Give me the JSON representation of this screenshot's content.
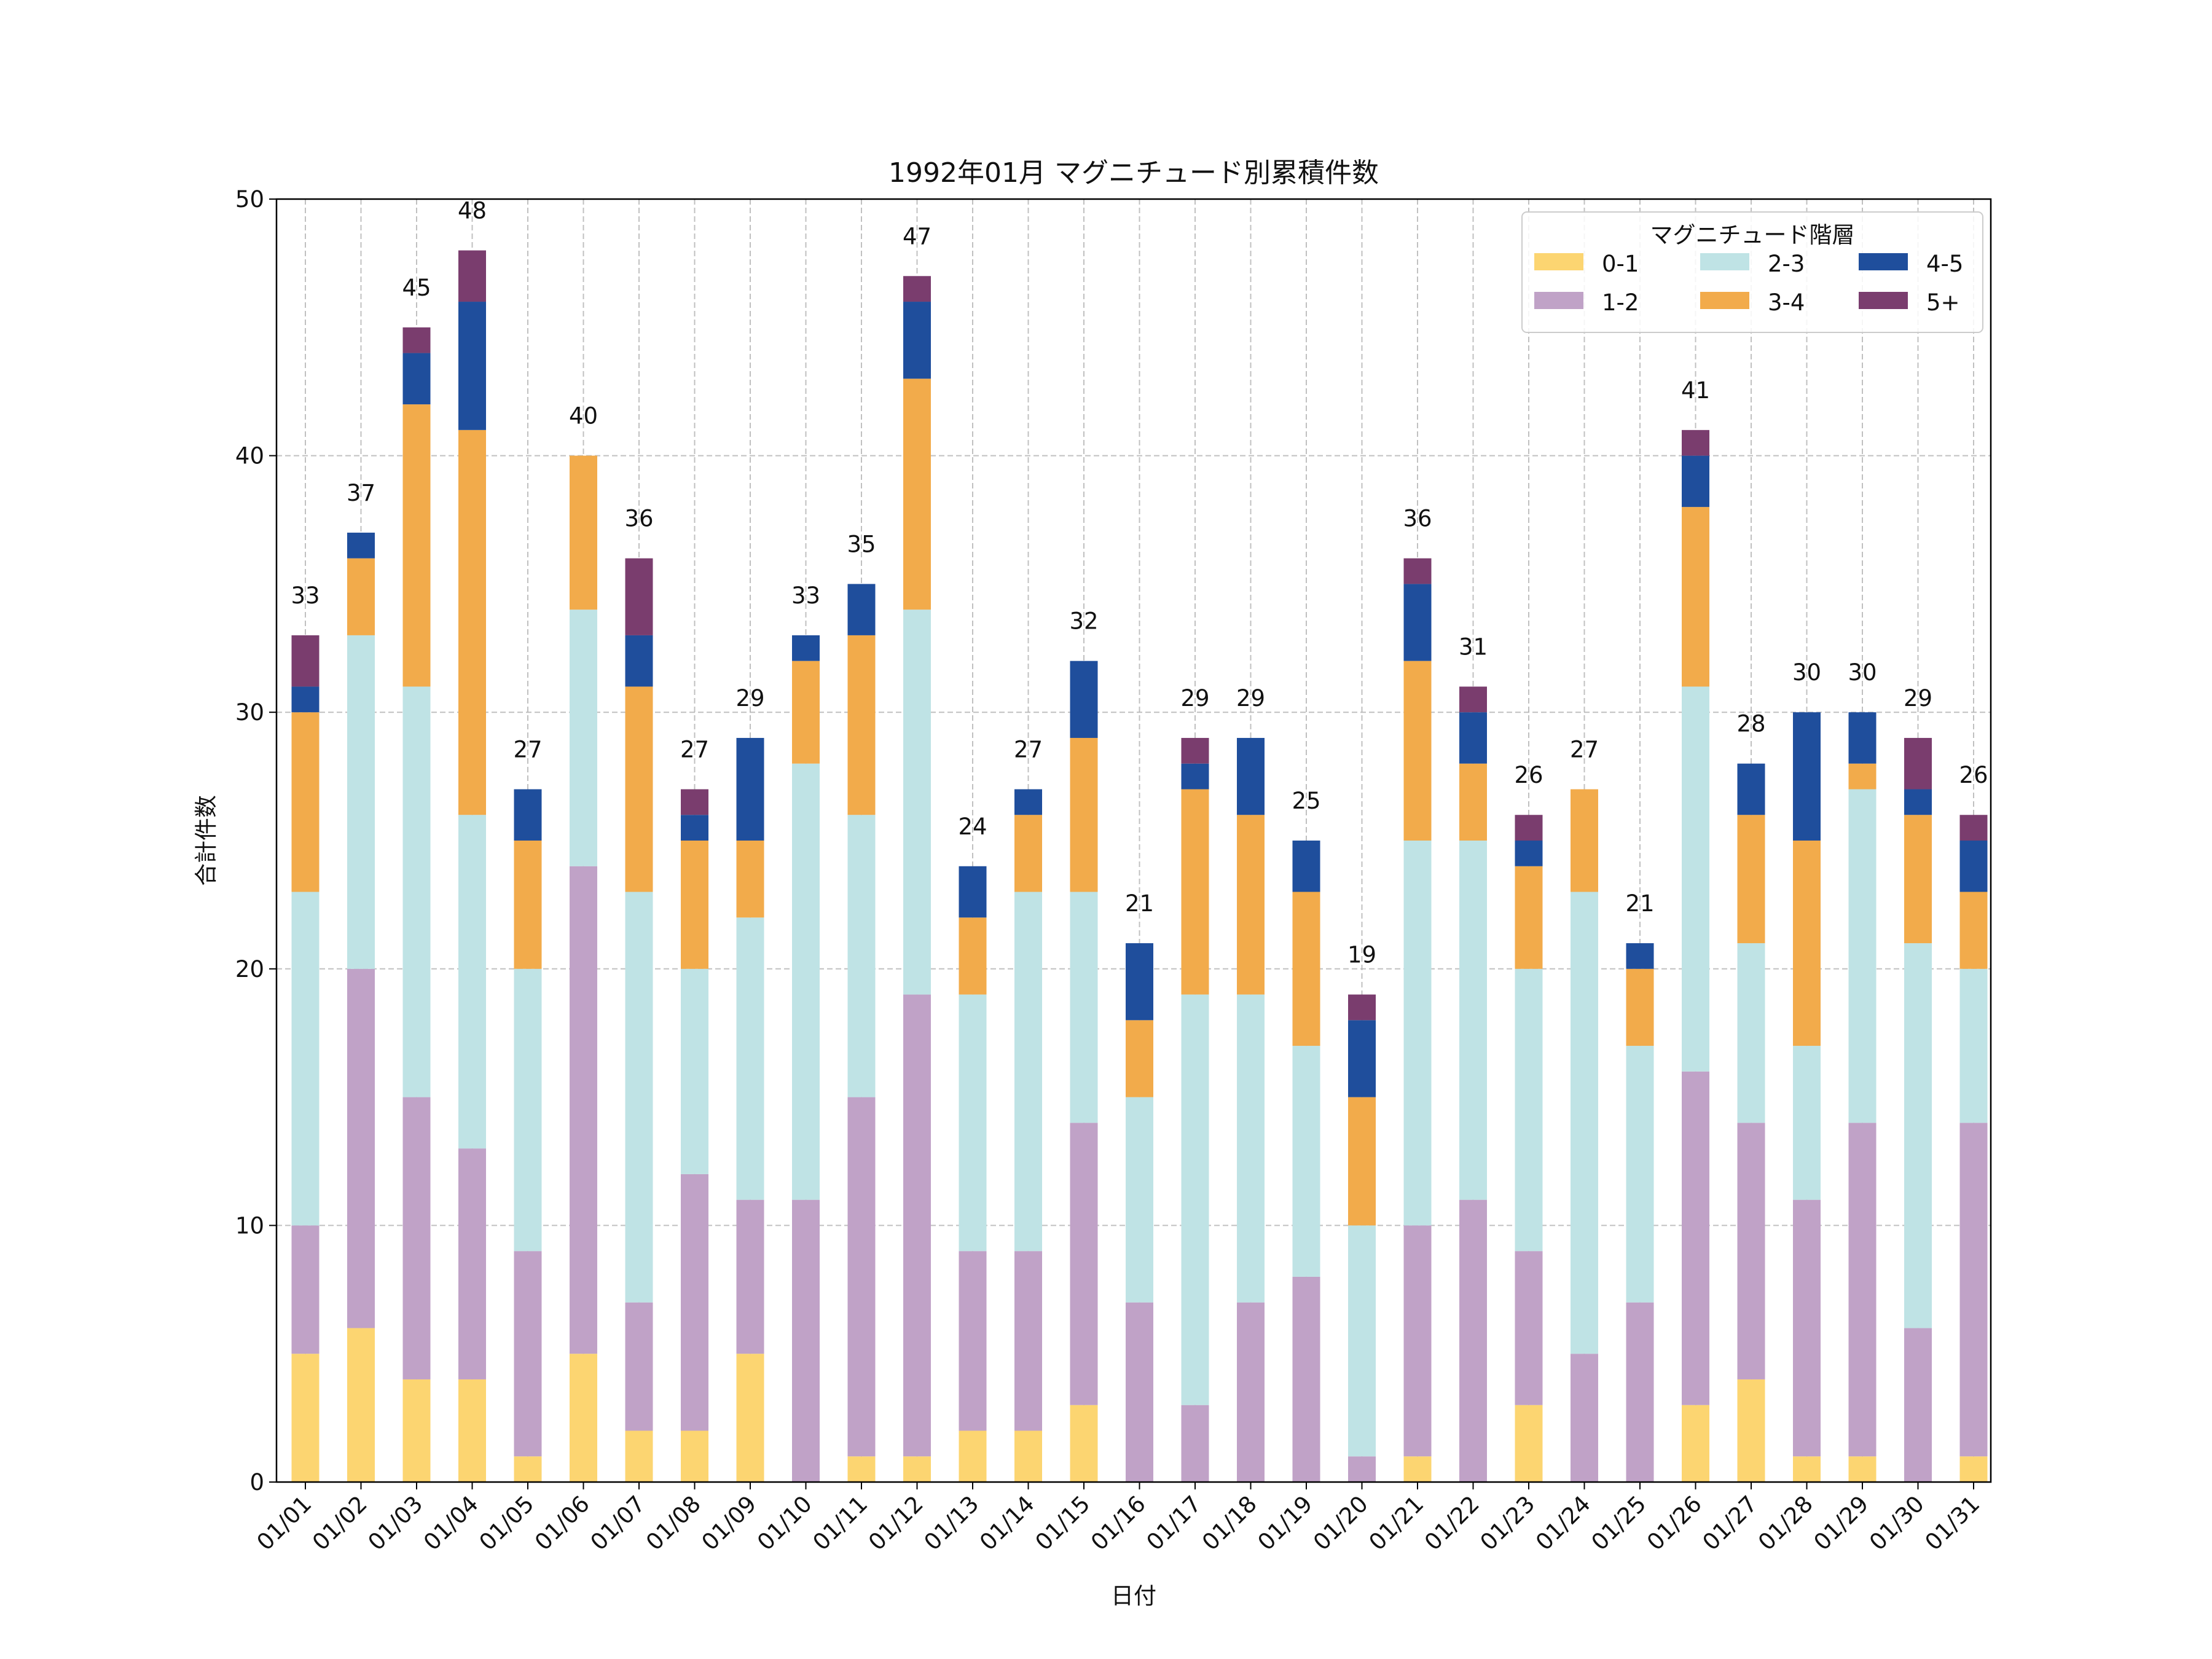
{
  "chart_data": {
    "type": "bar",
    "stacked": true,
    "title": "1992年01月 マグニチュード別累積件数",
    "xlabel": "日付",
    "ylabel": "合計件数",
    "ylim": [
      0,
      50
    ],
    "yticks": [
      0,
      10,
      20,
      30,
      40,
      50
    ],
    "grid": true,
    "legend_title": "マグニチュード階層",
    "legend_position": "top-right",
    "categories": [
      "01/01",
      "01/02",
      "01/03",
      "01/04",
      "01/05",
      "01/06",
      "01/07",
      "01/08",
      "01/09",
      "01/10",
      "01/11",
      "01/12",
      "01/13",
      "01/14",
      "01/15",
      "01/16",
      "01/17",
      "01/18",
      "01/19",
      "01/20",
      "01/21",
      "01/22",
      "01/23",
      "01/24",
      "01/25",
      "01/26",
      "01/27",
      "01/28",
      "01/29",
      "01/30",
      "01/31"
    ],
    "series": [
      {
        "name": "0-1",
        "color": "#fcd571",
        "values": [
          5,
          6,
          4,
          4,
          1,
          5,
          2,
          2,
          5,
          0,
          1,
          1,
          2,
          2,
          3,
          0,
          0,
          0,
          0,
          0,
          1,
          0,
          3,
          0,
          0,
          3,
          4,
          1,
          1,
          0,
          1
        ]
      },
      {
        "name": "1-2",
        "color": "#c0a2c7",
        "values": [
          5,
          14,
          11,
          9,
          8,
          19,
          5,
          10,
          6,
          11,
          14,
          18,
          7,
          7,
          11,
          7,
          3,
          7,
          8,
          1,
          9,
          11,
          6,
          5,
          7,
          13,
          10,
          10,
          13,
          6,
          13
        ]
      },
      {
        "name": "2-3",
        "color": "#bfe3e5",
        "values": [
          13,
          13,
          16,
          13,
          11,
          10,
          16,
          8,
          11,
          17,
          11,
          15,
          10,
          14,
          9,
          8,
          16,
          12,
          9,
          9,
          15,
          14,
          11,
          18,
          10,
          15,
          7,
          6,
          13,
          15,
          6
        ]
      },
      {
        "name": "3-4",
        "color": "#f2ab4b",
        "values": [
          7,
          3,
          11,
          15,
          5,
          6,
          8,
          5,
          3,
          4,
          7,
          9,
          3,
          3,
          6,
          3,
          8,
          7,
          6,
          5,
          7,
          3,
          4,
          4,
          3,
          7,
          5,
          8,
          1,
          5,
          3
        ]
      },
      {
        "name": "4-5",
        "color": "#1f4e9c",
        "values": [
          1,
          1,
          2,
          5,
          2,
          0,
          2,
          1,
          4,
          1,
          2,
          3,
          2,
          1,
          3,
          3,
          1,
          3,
          2,
          3,
          3,
          2,
          1,
          0,
          1,
          2,
          2,
          5,
          2,
          1,
          2
        ]
      },
      {
        "name": "5+",
        "color": "#7a3d6e",
        "values": [
          2,
          0,
          1,
          2,
          0,
          0,
          3,
          1,
          0,
          0,
          0,
          1,
          0,
          0,
          0,
          0,
          1,
          0,
          0,
          1,
          1,
          1,
          1,
          0,
          0,
          1,
          0,
          0,
          0,
          2,
          1
        ]
      }
    ],
    "totals": [
      33,
      37,
      45,
      48,
      27,
      40,
      36,
      27,
      29,
      33,
      35,
      47,
      24,
      27,
      32,
      21,
      29,
      29,
      25,
      19,
      36,
      31,
      26,
      27,
      21,
      41,
      28,
      30,
      30,
      29,
      26
    ]
  }
}
